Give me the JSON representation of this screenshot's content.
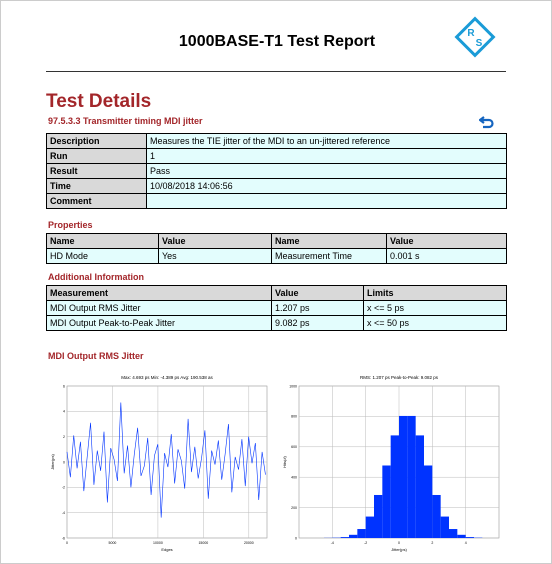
{
  "header": {
    "title": "1000BASE-T1 Test Report",
    "logo": [
      "R",
      "S"
    ]
  },
  "section_title": "Test Details",
  "test_name": "97.5.3.3 Transmitter timing MDI jitter",
  "details": {
    "rows": [
      [
        "Description",
        "Measures the TIE jitter of the MDI to an un-jittered reference"
      ],
      [
        "Run",
        "1"
      ],
      [
        "Result",
        "Pass"
      ],
      [
        "Time",
        "10/08/2018 14:06:56"
      ],
      [
        "Comment"
      ]
    ]
  },
  "properties": {
    "heading": "Properties",
    "columns": [
      "Name",
      "Value",
      "Name",
      "Value"
    ],
    "rows": [
      [
        "HD Mode",
        "Yes",
        "Measurement Time",
        "0.001 s"
      ]
    ]
  },
  "additional": {
    "heading": "Additional Information",
    "columns": [
      "Measurement",
      "Value",
      "Limits"
    ],
    "rows": [
      [
        "MDI Output RMS Jitter",
        "1.207 ps",
        "x <= 5 ps"
      ],
      [
        "MDI Output Peak-to-Peak Jitter",
        "9.082 ps",
        "x <= 50 ps"
      ]
    ]
  },
  "plots_heading": "MDI Output RMS Jitter",
  "chart_data": [
    {
      "type": "line",
      "title": "Max: 4.693 ps Min: -4.389 ps Avg: 190.538 as",
      "x_label": "Edges",
      "y_label": "Jitter(ps)",
      "color": "#0033ff",
      "grid": true,
      "x": [
        0,
        370,
        740,
        1110,
        1480,
        1850,
        2220,
        2590,
        2960,
        3330,
        3700,
        4070,
        4440,
        4810,
        5180,
        5550,
        5920,
        6290,
        6660,
        7030,
        7400,
        7770,
        8140,
        8510,
        8880,
        9250,
        9620,
        9990,
        10360,
        10730,
        11100,
        11470,
        11840,
        12210,
        12580,
        12950,
        13320,
        13690,
        14060,
        14430,
        14800,
        15170,
        15540,
        15910,
        16280,
        16650,
        17020,
        17390,
        17760,
        18130,
        18500,
        18870,
        19240,
        19610,
        19980,
        20350,
        20720,
        21090,
        21460,
        21830
      ],
      "values": [
        0.8,
        -1.2,
        2.1,
        -0.5,
        1.6,
        -2.3,
        0.4,
        3.1,
        -1.8,
        0.9,
        -0.7,
        2.4,
        -3.2,
        1.1,
        0.2,
        -1.5,
        4.693,
        -0.9,
        1.3,
        -2.0,
        0.6,
        2.7,
        -1.1,
        -0.3,
        1.9,
        -2.6,
        0.5,
        1.4,
        -4.389,
        0.7,
        -0.4,
        2.2,
        -1.7,
        1.0,
        0.1,
        -2.1,
        3.4,
        -0.8,
        1.2,
        -1.3,
        0.3,
        2.5,
        -2.9,
        0.9,
        -0.2,
        1.7,
        -1.4,
        0.6,
        3.0,
        -2.4,
        0.4,
        -0.6,
        1.8,
        -1.9,
        2.0,
        -0.1,
        1.5,
        -3.0,
        0.8,
        -1.0
      ],
      "xlim": [
        0,
        22000
      ],
      "xticks": [
        0,
        5000,
        10000,
        15000,
        20000
      ],
      "ylim": [
        -6,
        6
      ],
      "yticks": [
        -6,
        -4,
        -2,
        0,
        2,
        4,
        6
      ]
    },
    {
      "type": "histogram",
      "title": "RMS: 1.207 ps Peak-to-Peak: 9.082 ps",
      "x_label": "Jitter(ps)",
      "y_label": "Hits(#)",
      "color": "#0033ff",
      "grid": true,
      "bins": [
        -6,
        -5.5,
        -5,
        -4.5,
        -4,
        -3.5,
        -3,
        -2.5,
        -2,
        -1.5,
        -1,
        -0.5,
        0,
        0.5,
        1,
        1.5,
        2,
        2.5,
        3,
        3.5,
        4,
        4.5,
        5,
        5.5,
        6
      ],
      "values": [
        0,
        0,
        0,
        1,
        2,
        6,
        21,
        59,
        141,
        283,
        477,
        675,
        803,
        803,
        675,
        477,
        283,
        141,
        59,
        21,
        6,
        2,
        0,
        0
      ],
      "xlim": [
        -6,
        6
      ],
      "xticks": [
        -4,
        -2,
        0,
        2,
        4
      ],
      "ylim": [
        0,
        1000
      ],
      "yticks": [
        0,
        200,
        400,
        600,
        800,
        1000
      ]
    }
  ]
}
